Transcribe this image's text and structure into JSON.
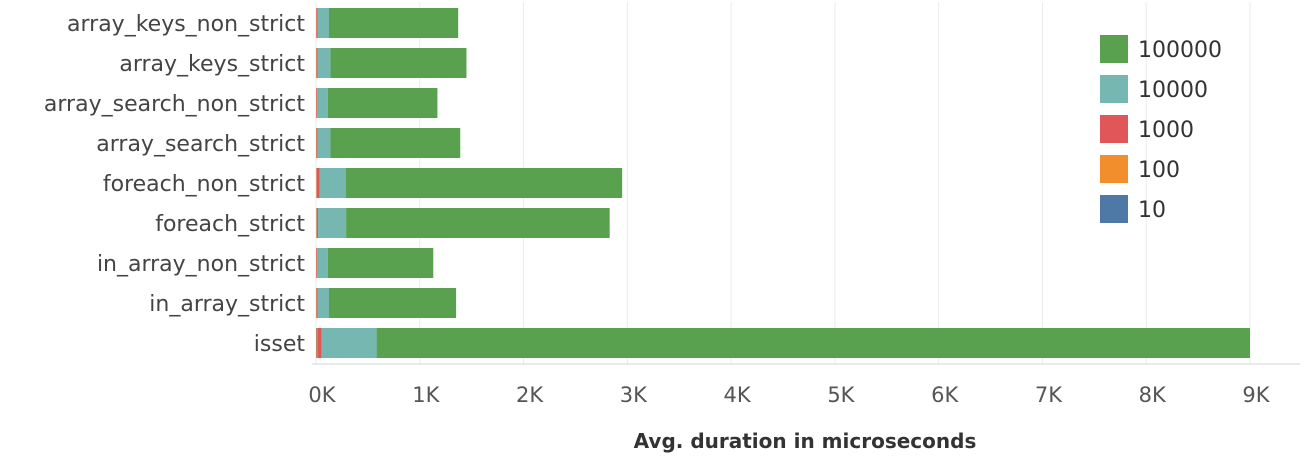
{
  "chart_data": {
    "type": "bar",
    "orientation": "horizontal",
    "stacked": true,
    "categories": [
      "array_keys_non_strict",
      "array_keys_strict",
      "array_search_non_strict",
      "array_search_strict",
      "foreach_non_strict",
      "foreach_strict",
      "in_array_non_strict",
      "in_array_strict",
      "isset"
    ],
    "series": [
      {
        "name": "10",
        "color": "#4e79a7",
        "values": [
          2,
          2,
          2,
          2,
          3,
          3,
          2,
          2,
          4
        ]
      },
      {
        "name": "100",
        "color": "#f28e2b",
        "values": [
          3,
          3,
          3,
          3,
          5,
          5,
          3,
          3,
          8
        ]
      },
      {
        "name": "1000",
        "color": "#e15759",
        "values": [
          10,
          10,
          8,
          9,
          28,
          12,
          8,
          10,
          42
        ]
      },
      {
        "name": "10000",
        "color": "#76b7b2",
        "values": [
          110,
          125,
          100,
          125,
          250,
          270,
          100,
          110,
          530
        ]
      },
      {
        "name": "100000",
        "color": "#59a14f",
        "values": [
          1245,
          1310,
          1057,
          1251,
          2664,
          2540,
          1017,
          1225,
          8416
        ]
      }
    ],
    "title": "",
    "xlabel": "Avg. duration in microseconds",
    "ylabel": "",
    "xlim": [
      0,
      9000
    ],
    "ticks": [
      {
        "value": 0,
        "label": "0K"
      },
      {
        "value": 1000,
        "label": "1K"
      },
      {
        "value": 2000,
        "label": "2K"
      },
      {
        "value": 3000,
        "label": "3K"
      },
      {
        "value": 4000,
        "label": "4K"
      },
      {
        "value": 5000,
        "label": "5K"
      },
      {
        "value": 6000,
        "label": "6K"
      },
      {
        "value": 7000,
        "label": "7K"
      },
      {
        "value": 8000,
        "label": "8K"
      },
      {
        "value": 9000,
        "label": "9K"
      }
    ],
    "legend_order": [
      "100000",
      "10000",
      "1000",
      "100",
      "10"
    ],
    "legend_position": "top-right",
    "grid": true
  }
}
